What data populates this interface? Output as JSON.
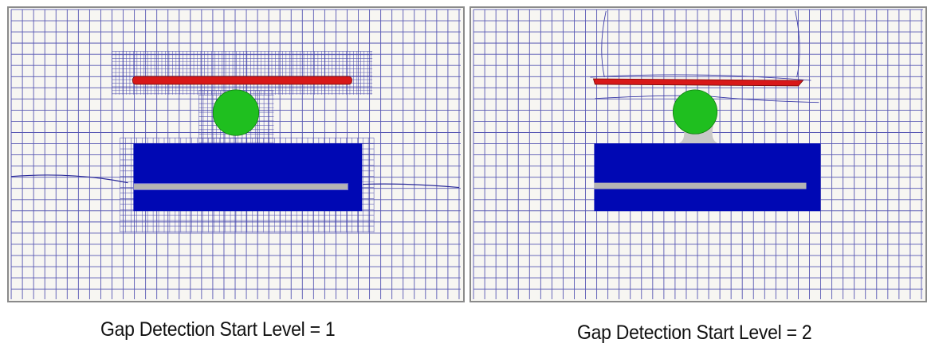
{
  "panels": [
    {
      "id": "left",
      "caption": "Gap Detection Start Level = 1",
      "start_level": 1
    },
    {
      "id": "right",
      "caption": "Gap Detection Start Level = 2",
      "start_level": 2
    }
  ],
  "colors": {
    "mesh_line": "#3a3aa8",
    "background": "#f7f6f2",
    "top_plate": "#d81818",
    "sphere": "#1fbf1f",
    "block": "#0008b4",
    "slot_bar": "#b4b4b4"
  }
}
